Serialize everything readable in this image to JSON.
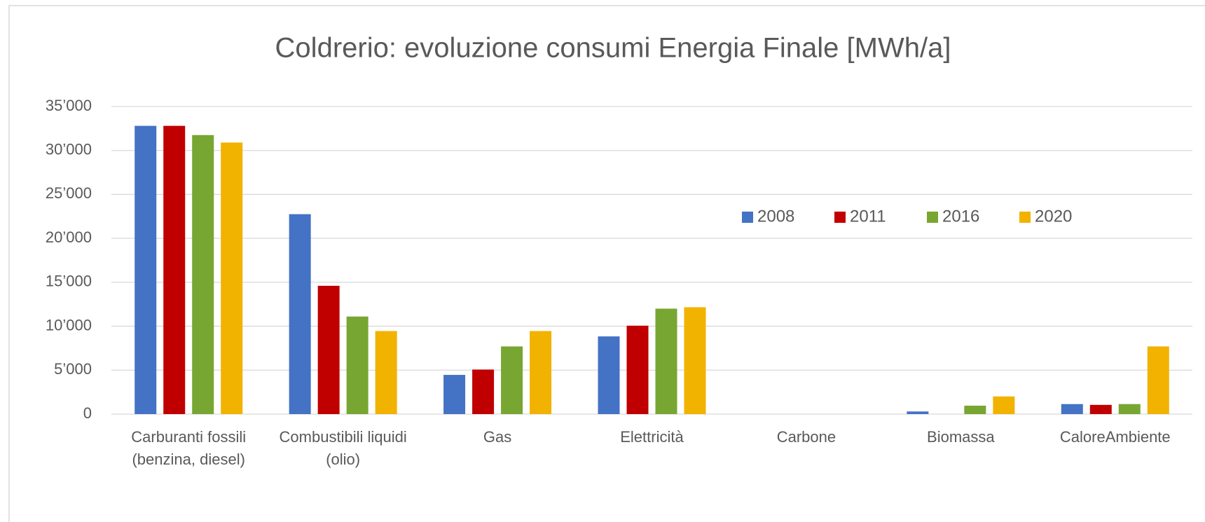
{
  "chart_data": {
    "type": "bar",
    "title": "Coldrerio: evoluzione consumi Energia Finale [MWh/a]",
    "categories": [
      "Carburanti fossili (benzina, diesel)",
      "Combustibili liquidi (olio)",
      "Gas",
      "Elettricità",
      "Carbone",
      "Biomassa",
      "CaloreAmbiente"
    ],
    "series": [
      {
        "name": "2008",
        "color": "#4472c4",
        "values": [
          32800,
          22750,
          4460,
          8840,
          0,
          300,
          1140
        ]
      },
      {
        "name": "2011",
        "color": "#c00000",
        "values": [
          32800,
          14600,
          5070,
          10060,
          0,
          0,
          1050
        ]
      },
      {
        "name": "2016",
        "color": "#78a632",
        "values": [
          31750,
          11100,
          7700,
          12000,
          0,
          960,
          1140
        ]
      },
      {
        "name": "2020",
        "color": "#f2b200",
        "values": [
          30900,
          9450,
          9450,
          12160,
          0,
          2010,
          7700
        ]
      }
    ],
    "ylim": [
      0,
      35000
    ],
    "yticks": [
      0,
      {
        "value": 5000,
        "label": "5’000"
      },
      {
        "value": 10000,
        "label": "10’000"
      },
      {
        "value": 15000,
        "label": "15’000"
      },
      {
        "value": 20000,
        "label": "20’000"
      },
      {
        "value": 25000,
        "label": "25’000"
      },
      {
        "value": 30000,
        "label": "30’000"
      },
      {
        "value": 35000,
        "label": "35’000"
      }
    ],
    "grid": true,
    "legend": "right"
  }
}
